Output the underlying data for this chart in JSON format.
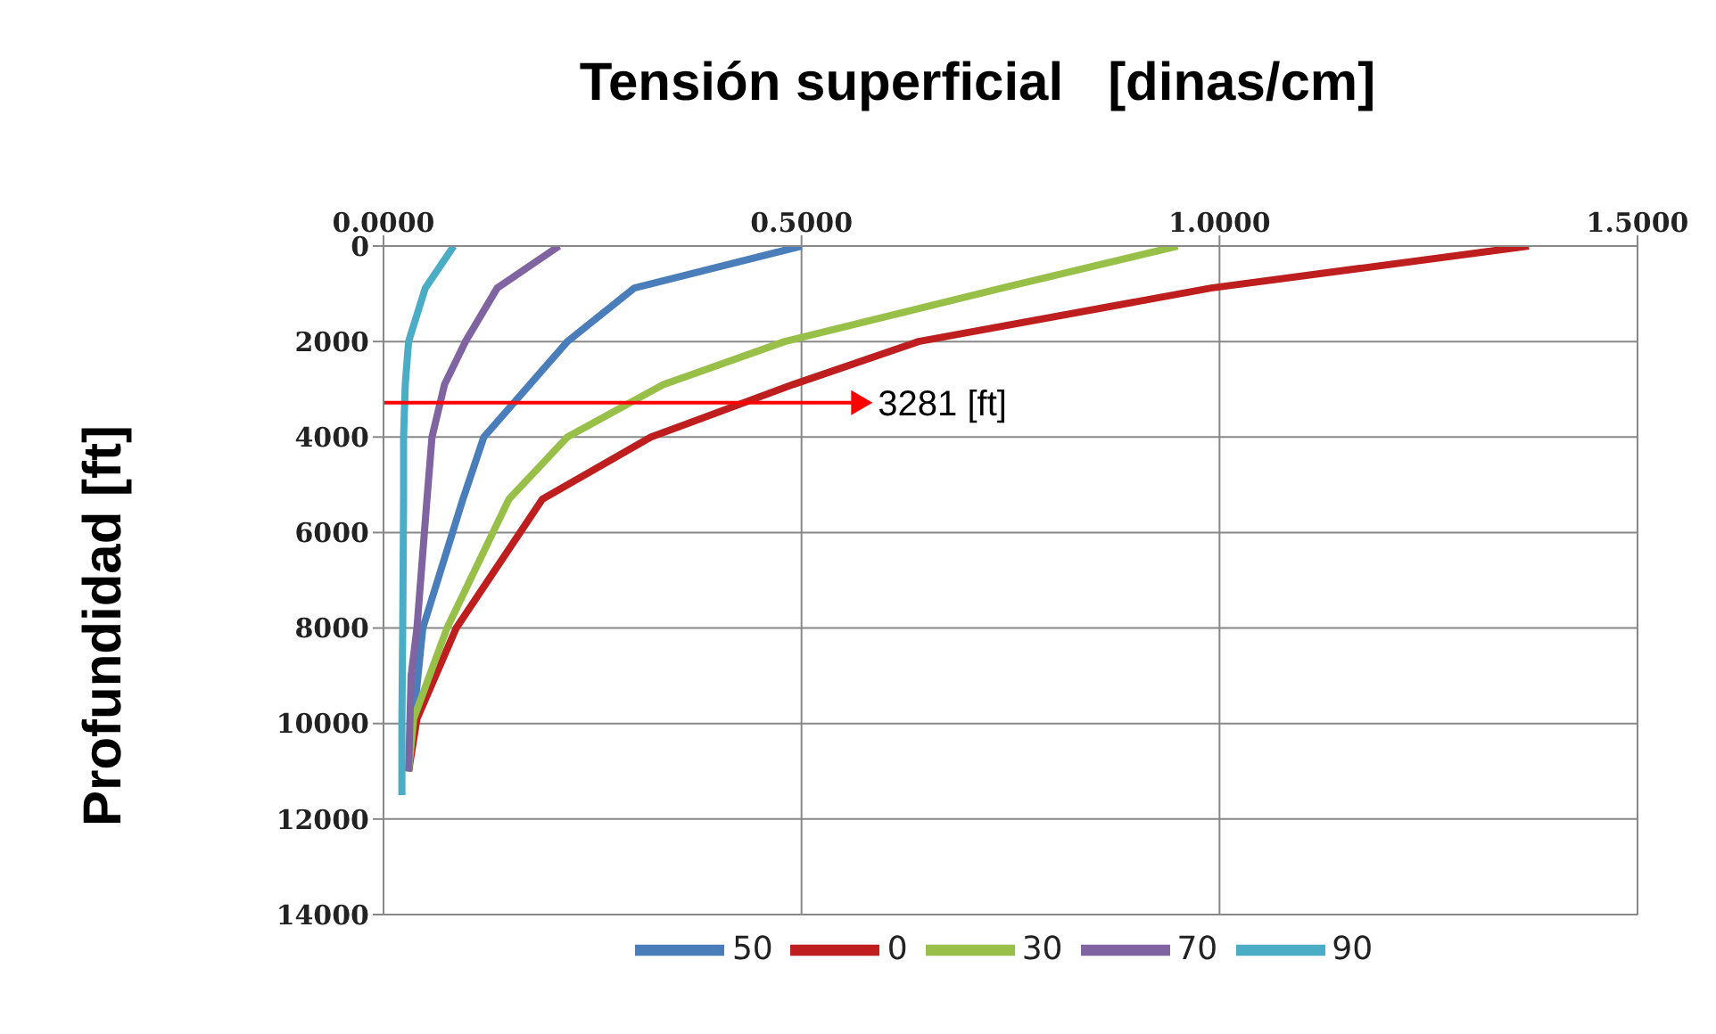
{
  "chart_data": {
    "type": "line",
    "xlabel": "Tensión superficial   [dinas/cm]",
    "ylabel": "Profundidad [ft]",
    "xlim": [
      0,
      1.5
    ],
    "xticks": [
      {
        "value": 0,
        "label": "0.0000"
      },
      {
        "value": 0.5,
        "label": "0.5000"
      },
      {
        "value": 1,
        "label": "1.0000"
      },
      {
        "value": 1.5,
        "label": "1.5000"
      }
    ],
    "ylim": [
      14000,
      0
    ],
    "yticks": [
      0,
      2000,
      4000,
      6000,
      8000,
      10000,
      12000,
      14000
    ],
    "grid": true,
    "legend": "bottom",
    "marker": "none",
    "line_style": "solid",
    "ref_lines": [
      {
        "axis": "y",
        "value": 3281,
        "label": "3281 [ft]",
        "color": "#ff0000"
      }
    ],
    "series": [
      {
        "name": "50",
        "color": "#4a7ebb",
        "x": [
          0.5,
          0.3,
          0.22,
          0.175,
          0.12,
          0.095,
          0.047,
          0.036,
          0.03
        ],
        "values": [
          0,
          880,
          2000,
          2900,
          4000,
          5300,
          8000,
          9900,
          11000
        ]
      },
      {
        "name": "0",
        "color": "#be1e1e",
        "x": [
          1.37,
          0.99,
          0.64,
          0.49,
          0.32,
          0.19,
          0.087,
          0.04,
          0.03
        ],
        "values": [
          0,
          880,
          2000,
          2900,
          4000,
          5300,
          8000,
          9900,
          11000
        ]
      },
      {
        "name": "30",
        "color": "#98c049",
        "x": [
          0.95,
          0.74,
          0.48,
          0.335,
          0.22,
          0.15,
          0.076,
          0.036,
          0.03
        ],
        "values": [
          0,
          880,
          2000,
          2900,
          4000,
          5300,
          8000,
          9900,
          11000
        ]
      },
      {
        "name": "70",
        "color": "#8064a2",
        "x": [
          0.21,
          0.136,
          0.098,
          0.073,
          0.058,
          0.052,
          0.04,
          0.033,
          0.03
        ],
        "values": [
          0,
          880,
          2000,
          2900,
          4000,
          5300,
          8000,
          9000,
          11000
        ]
      },
      {
        "name": "90",
        "color": "#4bacc6",
        "x": [
          0.084,
          0.05,
          0.03,
          0.026,
          0.024,
          0.024,
          0.023,
          0.022,
          0.022
        ],
        "values": [
          0,
          880,
          2000,
          2900,
          4000,
          5300,
          8000,
          9900,
          11500
        ]
      }
    ]
  }
}
